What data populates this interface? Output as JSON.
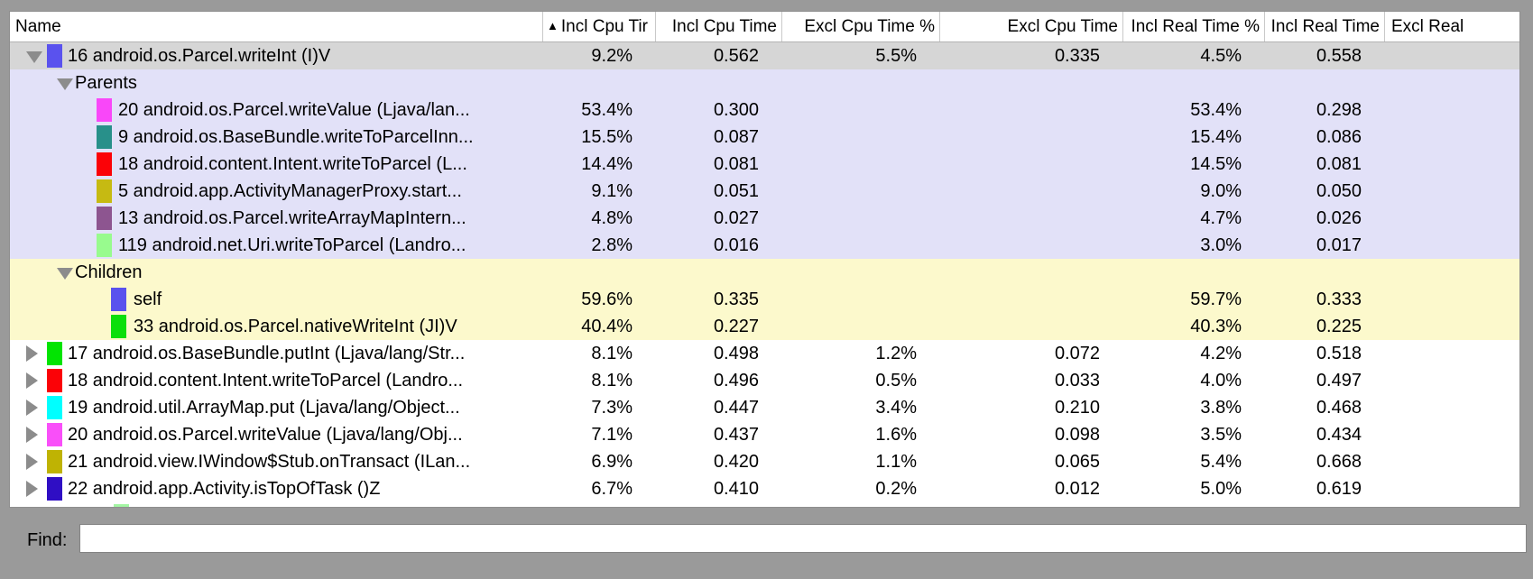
{
  "theme": {
    "frame_gray": "#9a9a9a",
    "selected_row_bg": "#d6d6d6",
    "parents_section_bg": "#e2e1f8",
    "children_section_bg": "#fcf9cc",
    "row_bg": "#ffffff",
    "disclosure_gray": "#8c8c8c",
    "header_separator": "#c9c9c9"
  },
  "table": {
    "sort_icon": "▲",
    "columns": [
      {
        "label": "Name"
      },
      {
        "label": "Incl Cpu Tir",
        "sort": "asc"
      },
      {
        "label": "Incl Cpu Time"
      },
      {
        "label": "Excl Cpu Time %"
      },
      {
        "label": "Excl Cpu Time"
      },
      {
        "label": "Incl Real Time %"
      },
      {
        "label": "Incl Real Time"
      },
      {
        "label": "Excl Real"
      }
    ],
    "rows": [
      {
        "indent": 0,
        "disclosure": "down",
        "swatch": "#5a52ee",
        "name": "16 android.os.Parcel.writeInt (I)V",
        "bg": "selected",
        "values": [
          "9.2%",
          "0.562",
          "5.5%",
          "0.335",
          "4.5%",
          "0.558",
          ""
        ]
      },
      {
        "indent": 1,
        "disclosure": "down",
        "name": "Parents",
        "bg": "parents",
        "section": true
      },
      {
        "indent": 2,
        "swatch": "#f947f9",
        "name": "20 android.os.Parcel.writeValue (Ljava/lan...",
        "bg": "parents",
        "values": [
          "53.4%",
          "0.300",
          "",
          "",
          "53.4%",
          "0.298",
          ""
        ]
      },
      {
        "indent": 2,
        "swatch": "#28908a",
        "name": "9 android.os.BaseBundle.writeToParcelInn...",
        "bg": "parents",
        "values": [
          "15.5%",
          "0.087",
          "",
          "",
          "15.4%",
          "0.086",
          ""
        ]
      },
      {
        "indent": 2,
        "swatch": "#fb0207",
        "name": "18 android.content.Intent.writeToParcel (L...",
        "bg": "parents",
        "values": [
          "14.4%",
          "0.081",
          "",
          "",
          "14.5%",
          "0.081",
          ""
        ]
      },
      {
        "indent": 2,
        "swatch": "#c6ba12",
        "name": "5 android.app.ActivityManagerProxy.start...",
        "bg": "parents",
        "values": [
          "9.1%",
          "0.051",
          "",
          "",
          "9.0%",
          "0.050",
          ""
        ]
      },
      {
        "indent": 2,
        "swatch": "#8d5590",
        "name": "13 android.os.Parcel.writeArrayMapIntern...",
        "bg": "parents",
        "values": [
          "4.8%",
          "0.027",
          "",
          "",
          "4.7%",
          "0.026",
          ""
        ]
      },
      {
        "indent": 2,
        "swatch": "#98fb8e",
        "name": "119 android.net.Uri.writeToParcel (Landro...",
        "bg": "parents",
        "values": [
          "2.8%",
          "0.016",
          "",
          "",
          "3.0%",
          "0.017",
          ""
        ]
      },
      {
        "indent": 1,
        "disclosure": "down",
        "name": "Children",
        "bg": "children",
        "section": true
      },
      {
        "indent": 3,
        "swatch": "#5a52ee",
        "name": "self",
        "bg": "children",
        "values": [
          "59.6%",
          "0.335",
          "",
          "",
          "59.7%",
          "0.333",
          ""
        ]
      },
      {
        "indent": 3,
        "swatch": "#0bdf0b",
        "name": "33 android.os.Parcel.nativeWriteInt (JI)V",
        "bg": "children",
        "values": [
          "40.4%",
          "0.227",
          "",
          "",
          "40.3%",
          "0.225",
          ""
        ]
      },
      {
        "indent": 0,
        "disclosure": "right",
        "swatch": "#02e402",
        "name": "17 android.os.BaseBundle.putInt (Ljava/lang/Str...",
        "bg": "white",
        "values": [
          "8.1%",
          "0.498",
          "1.2%",
          "0.072",
          "4.2%",
          "0.518",
          ""
        ]
      },
      {
        "indent": 0,
        "disclosure": "right",
        "swatch": "#fb0207",
        "name": "18 android.content.Intent.writeToParcel (Landro...",
        "bg": "white",
        "values": [
          "8.1%",
          "0.496",
          "0.5%",
          "0.033",
          "4.0%",
          "0.497",
          ""
        ]
      },
      {
        "indent": 0,
        "disclosure": "right",
        "swatch": "#00ffff",
        "name": "19 android.util.ArrayMap.put (Ljava/lang/Object...",
        "bg": "white",
        "values": [
          "7.3%",
          "0.447",
          "3.4%",
          "0.210",
          "3.8%",
          "0.468",
          ""
        ]
      },
      {
        "indent": 0,
        "disclosure": "right",
        "swatch": "#f94ff9",
        "name": "20 android.os.Parcel.writeValue (Ljava/lang/Obj...",
        "bg": "white",
        "values": [
          "7.1%",
          "0.437",
          "1.6%",
          "0.098",
          "3.5%",
          "0.434",
          ""
        ]
      },
      {
        "indent": 0,
        "disclosure": "right",
        "swatch": "#bfb303",
        "name": "21 android.view.IWindow$Stub.onTransact (ILan...",
        "bg": "white",
        "values": [
          "6.9%",
          "0.420",
          "1.1%",
          "0.065",
          "5.4%",
          "0.668",
          ""
        ]
      },
      {
        "indent": 0,
        "disclosure": "right",
        "swatch": "#2f0ec4",
        "name": "22 android.app.Activity.isTopOfTask ()Z",
        "bg": "white",
        "values": [
          "6.7%",
          "0.410",
          "0.2%",
          "0.012",
          "5.0%",
          "0.619",
          ""
        ]
      },
      {
        "indent": 4,
        "swatch": "#a4f6a4",
        "name": "",
        "bg": "white",
        "partial": true
      }
    ]
  },
  "find": {
    "label": "Find:",
    "value": ""
  }
}
